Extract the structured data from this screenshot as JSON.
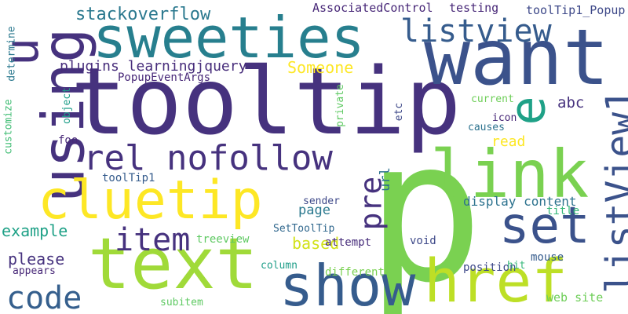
{
  "words": [
    {
      "text": "tooltip",
      "color": "#46327e"
    },
    {
      "text": "p",
      "color": "#7ad151"
    },
    {
      "text": "sweeties",
      "color": "#277f8e"
    },
    {
      "text": "want",
      "color": "#3b528b"
    },
    {
      "text": "using",
      "color": "#46327e"
    },
    {
      "text": "text",
      "color": "#a0da39"
    },
    {
      "text": "show",
      "color": "#365c8d"
    },
    {
      "text": "href",
      "color": "#bddf26"
    },
    {
      "text": "cluetip",
      "color": "#fde725"
    },
    {
      "text": "link",
      "color": "#7ad151"
    },
    {
      "text": "set",
      "color": "#3b528b"
    },
    {
      "text": "rel nofollow",
      "color": "#46327e"
    },
    {
      "text": "e",
      "color": "#1fa187"
    },
    {
      "text": "listView1",
      "color": "#3b528b"
    },
    {
      "text": "listview",
      "color": "#365c8d"
    },
    {
      "text": "item",
      "color": "#46327e"
    },
    {
      "text": "code",
      "color": "#355f8d"
    },
    {
      "text": "pre",
      "color": "#46327e"
    },
    {
      "text": "stackoverflow",
      "color": "#2a788e"
    },
    {
      "text": "u",
      "color": "#46327e"
    },
    {
      "text": "plugins learningjquery",
      "color": "#472d7b"
    },
    {
      "text": "Someone",
      "color": "#fde725"
    },
    {
      "text": "AssociatedControl",
      "color": "#482878"
    },
    {
      "text": "testing",
      "color": "#482878"
    },
    {
      "text": "toolTip1_Popup",
      "color": "#3e4989"
    },
    {
      "text": "PopupEventArgs",
      "color": "#482878"
    },
    {
      "text": "determine",
      "color": "#2a788e"
    },
    {
      "text": "customize",
      "color": "#3fbc73"
    },
    {
      "text": "object",
      "color": "#1f9e89"
    },
    {
      "text": "private",
      "color": "#5ec962"
    },
    {
      "text": "etc",
      "color": "#3e4989"
    },
    {
      "text": "current",
      "color": "#6ece58"
    },
    {
      "text": "icon",
      "color": "#482878"
    },
    {
      "text": "causes",
      "color": "#2c728e"
    },
    {
      "text": "abc",
      "color": "#46327e"
    },
    {
      "text": "read",
      "color": "#fde725"
    },
    {
      "text": "foo",
      "color": "#482878"
    },
    {
      "text": "toolTip1",
      "color": "#365c8d"
    },
    {
      "text": "url",
      "color": "#2c728e"
    },
    {
      "text": "sender",
      "color": "#3e4989"
    },
    {
      "text": "page",
      "color": "#2a788e"
    },
    {
      "text": "display content",
      "color": "#2c728e"
    },
    {
      "text": "title",
      "color": "#35b779"
    },
    {
      "text": "example",
      "color": "#1fa187"
    },
    {
      "text": "SetToolTip",
      "color": "#31688e"
    },
    {
      "text": "based",
      "color": "#d2e21b"
    },
    {
      "text": "treeview",
      "color": "#5ec962"
    },
    {
      "text": "attempt",
      "color": "#472d7b"
    },
    {
      "text": "void",
      "color": "#3e4989"
    },
    {
      "text": "please",
      "color": "#46327e"
    },
    {
      "text": "appears",
      "color": "#482878"
    },
    {
      "text": "column",
      "color": "#1f9e89"
    },
    {
      "text": "different",
      "color": "#7ad151"
    },
    {
      "text": "position",
      "color": "#3e4989"
    },
    {
      "text": "hit",
      "color": "#35b779"
    },
    {
      "text": "mouse",
      "color": "#365c8d"
    },
    {
      "text": "web site",
      "color": "#6ece58"
    },
    {
      "text": "subitem",
      "color": "#5ec962"
    }
  ]
}
